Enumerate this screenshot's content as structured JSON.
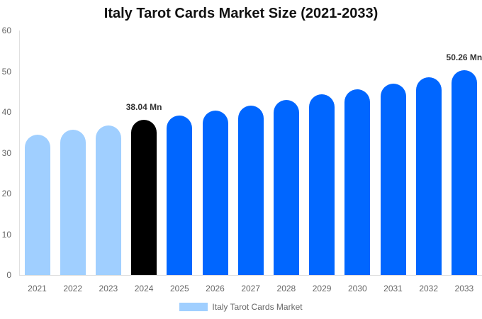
{
  "chart_data": {
    "type": "bar",
    "title": "Italy Tarot Cards Market Size (2021-2033)",
    "xlabel": "",
    "ylabel": "",
    "ylim": [
      0,
      60
    ],
    "yticks": [
      0,
      10,
      20,
      30,
      40,
      50,
      60
    ],
    "grid": false,
    "legend_position": "bottom",
    "categories": [
      "2021",
      "2022",
      "2023",
      "2024",
      "2025",
      "2026",
      "2027",
      "2028",
      "2029",
      "2030",
      "2031",
      "2032",
      "2033"
    ],
    "series": [
      {
        "name": "Italy Tarot Cards Market",
        "values": [
          34.4,
          35.6,
          36.7,
          38.04,
          39.1,
          40.3,
          41.6,
          42.9,
          44.3,
          45.6,
          47.0,
          48.6,
          50.26
        ]
      }
    ],
    "bar_colors": [
      "#a0cfff",
      "#a0cfff",
      "#a0cfff",
      "#000000",
      "#0066ff",
      "#0066ff",
      "#0066ff",
      "#0066ff",
      "#0066ff",
      "#0066ff",
      "#0066ff",
      "#0066ff",
      "#0066ff"
    ],
    "annotations": [
      {
        "category": "2024",
        "text": "38.04 Mn"
      },
      {
        "category": "2033",
        "text": "50.26 Mn"
      }
    ]
  },
  "legend": {
    "label": "Italy Tarot Cards Market",
    "color": "#a0cfff"
  }
}
